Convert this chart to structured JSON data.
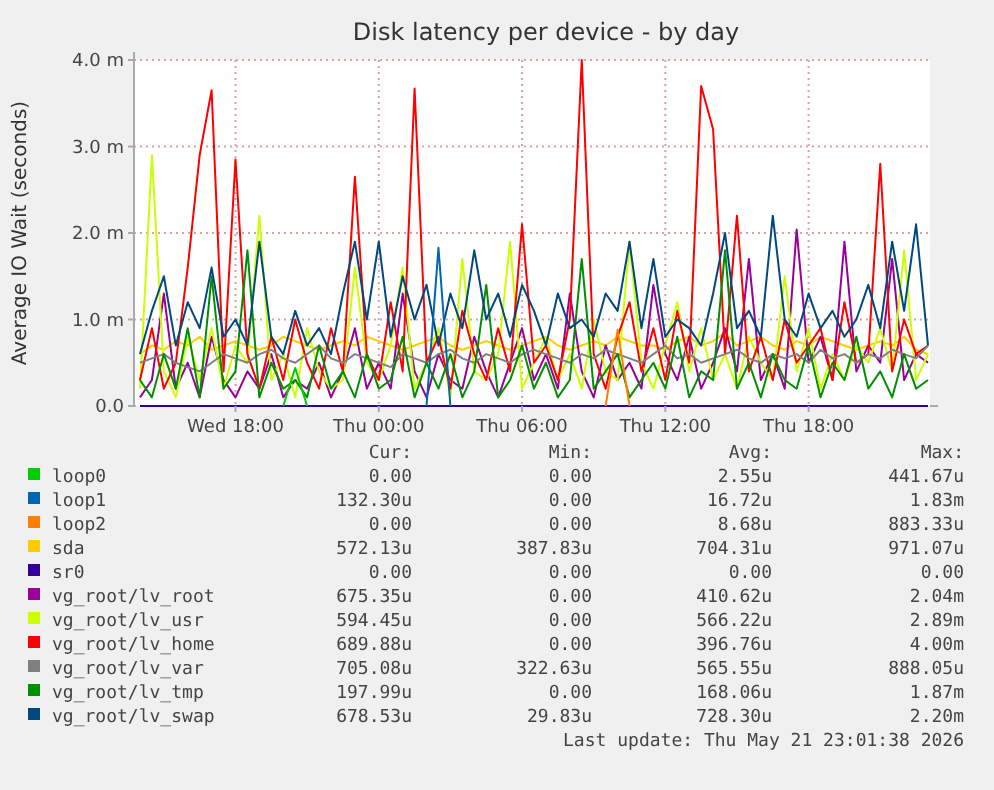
{
  "chart_data": {
    "type": "line",
    "title": "Disk latency per device - by day",
    "ylabel": "Average IO Wait (seconds)",
    "xlim": [
      "2026-05-20T13:45",
      "2026-05-21T23:05"
    ],
    "xticks": [
      {
        "value": "2026-05-20T18:00",
        "label": "Wed 18:00"
      },
      {
        "value": "2026-05-21T00:00",
        "label": "Thu 00:00"
      },
      {
        "value": "2026-05-21T06:00",
        "label": "Thu 06:00"
      },
      {
        "value": "2026-05-21T12:00",
        "label": "Thu 12:00"
      },
      {
        "value": "2026-05-21T18:00",
        "label": "Thu 18:00"
      }
    ],
    "ylim": [
      0,
      4
    ],
    "yticks": [
      {
        "value": 0,
        "label": "0.0"
      },
      {
        "value": 1,
        "label": "1.0 m"
      },
      {
        "value": 2,
        "label": "2.0 m"
      },
      {
        "value": 3,
        "label": "3.0 m"
      },
      {
        "value": 4,
        "label": "4.0 m"
      }
    ],
    "grid": true,
    "legend": "bottom",
    "marker": "none",
    "line_style": "solid",
    "x": [
      "2026-05-20T14:00",
      "2026-05-20T14:30",
      "2026-05-20T15:00",
      "2026-05-20T15:30",
      "2026-05-20T16:00",
      "2026-05-20T16:30",
      "2026-05-20T17:00",
      "2026-05-20T17:30",
      "2026-05-20T18:00",
      "2026-05-20T18:30",
      "2026-05-20T19:00",
      "2026-05-20T19:30",
      "2026-05-20T20:00",
      "2026-05-20T20:30",
      "2026-05-20T21:00",
      "2026-05-20T21:30",
      "2026-05-20T22:00",
      "2026-05-20T22:30",
      "2026-05-20T23:00",
      "2026-05-20T23:30",
      "2026-05-21T00:00",
      "2026-05-21T00:30",
      "2026-05-21T01:00",
      "2026-05-21T01:30",
      "2026-05-21T02:00",
      "2026-05-21T02:30",
      "2026-05-21T03:00",
      "2026-05-21T03:30",
      "2026-05-21T04:00",
      "2026-05-21T04:30",
      "2026-05-21T05:00",
      "2026-05-21T05:30",
      "2026-05-21T06:00",
      "2026-05-21T06:30",
      "2026-05-21T07:00",
      "2026-05-21T07:30",
      "2026-05-21T08:00",
      "2026-05-21T08:30",
      "2026-05-21T09:00",
      "2026-05-21T09:30",
      "2026-05-21T10:00",
      "2026-05-21T10:30",
      "2026-05-21T11:00",
      "2026-05-21T11:30",
      "2026-05-21T12:00",
      "2026-05-21T12:30",
      "2026-05-21T13:00",
      "2026-05-21T13:30",
      "2026-05-21T14:00",
      "2026-05-21T14:30",
      "2026-05-21T15:00",
      "2026-05-21T15:30",
      "2026-05-21T16:00",
      "2026-05-21T16:30",
      "2026-05-21T17:00",
      "2026-05-21T17:30",
      "2026-05-21T18:00",
      "2026-05-21T18:30",
      "2026-05-21T19:00",
      "2026-05-21T19:30",
      "2026-05-21T20:00",
      "2026-05-21T20:30",
      "2026-05-21T21:00",
      "2026-05-21T21:30",
      "2026-05-21T22:00",
      "2026-05-21T22:30",
      "2026-05-21T23:00"
    ],
    "series": [
      {
        "name": "loop0",
        "color": "#00cc00",
        "x": [
          "2026-05-20T20:00",
          "2026-05-20T20:30",
          "2026-05-20T21:00"
        ],
        "values": [
          0,
          0.44,
          0
        ]
      },
      {
        "name": "loop1",
        "color": "#0066b3",
        "x": [
          "2026-05-21T02:00",
          "2026-05-21T02:30",
          "2026-05-21T03:00"
        ],
        "values": [
          0,
          1.83,
          0
        ]
      },
      {
        "name": "loop2",
        "color": "#ff8000",
        "x": [
          "2026-05-21T09:30",
          "2026-05-21T10:00",
          "2026-05-21T10:30"
        ],
        "values": [
          0,
          0.88,
          0
        ]
      },
      {
        "name": "sda",
        "color": "#ffcc00",
        "values": [
          0.6,
          0.7,
          0.65,
          0.75,
          0.7,
          0.8,
          0.65,
          0.7,
          0.75,
          0.7,
          0.65,
          0.7,
          0.8,
          0.75,
          0.7,
          0.65,
          0.7,
          0.75,
          0.7,
          0.8,
          0.75,
          0.7,
          0.65,
          0.7,
          0.75,
          0.8,
          0.7,
          0.65,
          0.7,
          0.75,
          0.7,
          0.65,
          0.7,
          0.75,
          0.8,
          0.7,
          0.65,
          0.7,
          0.75,
          0.7,
          0.8,
          0.75,
          0.7,
          0.7,
          0.65,
          0.75,
          0.8,
          0.7,
          0.75,
          0.85,
          0.7,
          0.75,
          0.8,
          0.7,
          0.65,
          0.75,
          0.7,
          0.8,
          0.75,
          0.7,
          0.65,
          0.7,
          0.75,
          0.7,
          0.8,
          0.65,
          0.6
        ]
      },
      {
        "name": "sr0",
        "color": "#330099",
        "x": [
          "2026-05-20T14:00",
          "2026-05-21T23:00"
        ],
        "values": [
          0,
          0
        ]
      },
      {
        "name": "vg_root/lv_root",
        "color": "#990099",
        "values": [
          0.1,
          0.3,
          1.3,
          0.2,
          0.5,
          0.1,
          0.8,
          0.3,
          0.1,
          0.4,
          0.2,
          0.6,
          0.1,
          0.3,
          0.2,
          0.5,
          0.1,
          0.4,
          0.9,
          0.2,
          0.5,
          0.2,
          1.3,
          0.4,
          0.1,
          0.6,
          0.3,
          0.2,
          0.8,
          0.4,
          0.1,
          0.5,
          0.9,
          0.3,
          0.6,
          0.2,
          1.3,
          0.4,
          0.1,
          0.7,
          0.3,
          0.5,
          0.2,
          1.4,
          0.6,
          0.3,
          0.8,
          0.2,
          0.5,
          0.9,
          0.4,
          1.7,
          0.3,
          0.6,
          0.2,
          2.04,
          0.5,
          0.8,
          0.3,
          1.9,
          0.4,
          0.7,
          0.5,
          1.7,
          0.3,
          0.6,
          0.5
        ]
      },
      {
        "name": "vg_root/lv_usr",
        "color": "#ccff00",
        "values": [
          0.2,
          2.9,
          0.4,
          0.1,
          0.8,
          0.3,
          0.9,
          0.2,
          0.7,
          0.5,
          2.2,
          0.3,
          0.6,
          0.1,
          0.9,
          0.4,
          0.2,
          0.3,
          1.6,
          0.5,
          0.3,
          0.7,
          1.6,
          0.2,
          0.5,
          0.9,
          0.1,
          1.7,
          0.4,
          0.3,
          0.6,
          1.9,
          0.2,
          0.5,
          0.8,
          0.3,
          0.6,
          0.2,
          1.0,
          0.4,
          0.3,
          1.9,
          0.5,
          0.2,
          0.7,
          1.2,
          0.4,
          0.9,
          0.3,
          0.6,
          0.2,
          0.8,
          0.5,
          0.3,
          1.5,
          0.4,
          0.9,
          0.2,
          0.6,
          0.3,
          0.7,
          0.5,
          0.9,
          0.4,
          1.8,
          0.3,
          0.6
        ]
      },
      {
        "name": "vg_root/lv_home",
        "color": "#ff0000",
        "values": [
          0.3,
          0.9,
          0.2,
          0.5,
          1.6,
          2.9,
          3.65,
          0.4,
          2.85,
          0.6,
          0.2,
          0.8,
          0.3,
          1.0,
          0.5,
          0.2,
          0.9,
          0.4,
          2.65,
          0.6,
          0.3,
          1.2,
          0.4,
          3.67,
          0.5,
          0.8,
          0.2,
          1.1,
          0.6,
          0.3,
          0.9,
          0.4,
          2.1,
          0.5,
          0.7,
          0.3,
          1.0,
          4.0,
          0.6,
          0.2,
          0.8,
          1.2,
          0.4,
          0.9,
          0.3,
          1.1,
          0.5,
          3.7,
          3.2,
          0.6,
          2.2,
          0.4,
          0.8,
          0.3,
          1.0,
          0.5,
          0.7,
          0.9,
          0.3,
          1.2,
          0.5,
          0.6,
          2.8,
          0.4,
          1.0,
          0.6,
          0.7
        ]
      },
      {
        "name": "vg_root/lv_var",
        "color": "#808080",
        "values": [
          0.5,
          0.55,
          0.6,
          0.5,
          0.45,
          0.4,
          0.5,
          0.6,
          0.55,
          0.5,
          0.6,
          0.65,
          0.55,
          0.5,
          0.6,
          0.7,
          0.55,
          0.5,
          0.6,
          0.55,
          0.5,
          0.45,
          0.6,
          0.55,
          0.5,
          0.6,
          0.65,
          0.55,
          0.5,
          0.6,
          0.55,
          0.5,
          0.6,
          0.65,
          0.6,
          0.55,
          0.5,
          0.6,
          0.55,
          0.65,
          0.6,
          0.55,
          0.5,
          0.6,
          0.7,
          0.55,
          0.6,
          0.5,
          0.55,
          0.6,
          0.65,
          0.55,
          0.5,
          0.6,
          0.55,
          0.6,
          0.5,
          0.65,
          0.55,
          0.6,
          0.5,
          0.6,
          0.55,
          0.65,
          0.6,
          0.55,
          0.7
        ]
      },
      {
        "name": "vg_root/lv_tmp",
        "color": "#008f00",
        "values": [
          0.3,
          0.1,
          0.6,
          0.2,
          0.9,
          0.1,
          1.5,
          0.2,
          0.4,
          1.8,
          0.1,
          0.5,
          0.2,
          0.3,
          0.1,
          0.7,
          0.2,
          0.4,
          0.1,
          0.6,
          0.2,
          0.3,
          0.8,
          0.1,
          0.5,
          0.2,
          0.6,
          0.1,
          0.4,
          1.4,
          0.1,
          0.3,
          0.7,
          0.2,
          0.5,
          0.1,
          0.3,
          1.7,
          0.2,
          0.4,
          0.6,
          0.1,
          0.3,
          0.5,
          0.2,
          0.8,
          0.1,
          0.4,
          0.3,
          1.8,
          0.2,
          0.5,
          0.1,
          0.6,
          0.3,
          0.2,
          0.7,
          0.1,
          0.5,
          0.3,
          0.8,
          0.2,
          0.4,
          0.1,
          0.6,
          0.2,
          0.3
        ]
      },
      {
        "name": "vg_root/lv_swap",
        "color": "#00487d",
        "values": [
          0.6,
          1.1,
          1.5,
          0.7,
          1.2,
          0.9,
          1.6,
          0.8,
          1.0,
          0.7,
          1.9,
          0.8,
          0.6,
          1.1,
          0.7,
          0.9,
          0.6,
          1.3,
          1.9,
          1.0,
          1.9,
          0.8,
          1.5,
          1.0,
          1.4,
          0.7,
          1.3,
          0.9,
          1.8,
          1.0,
          1.3,
          0.8,
          1.4,
          1.1,
          0.7,
          1.3,
          0.9,
          1.0,
          0.8,
          1.3,
          1.1,
          1.9,
          0.9,
          1.7,
          0.8,
          1.0,
          0.9,
          0.7,
          1.3,
          2.0,
          0.9,
          1.1,
          0.8,
          2.2,
          1.0,
          0.8,
          1.3,
          0.9,
          1.1,
          0.8,
          1.0,
          1.4,
          0.9,
          1.9,
          1.1,
          2.1,
          0.7
        ]
      }
    ],
    "annotations": [
      "Cur:",
      "Min:",
      "Avg:",
      "Max:",
      "0.00",
      "0.00",
      "2.55u",
      "441.67u",
      "132.30u",
      "0.00",
      "16.72u",
      "1.83m",
      "0.00",
      "0.00",
      "8.68u",
      "883.33u",
      "572.13u",
      "387.83u",
      "704.31u",
      "971.07u",
      "0.00",
      "0.00",
      "0.00",
      "0.00",
      "675.35u",
      "0.00",
      "410.62u",
      "2.04m",
      "594.45u",
      "0.00",
      "566.22u",
      "2.89m",
      "689.88u",
      "0.00",
      "396.76u",
      "4.00m",
      "705.08u",
      "322.63u",
      "565.55u",
      "888.05u",
      "197.99u",
      "0.00",
      "168.06u",
      "1.87m",
      "678.53u",
      "29.83u",
      "728.30u",
      "2.20m",
      "Last update: Thu May 21 23:01:38 2026"
    ]
  }
}
